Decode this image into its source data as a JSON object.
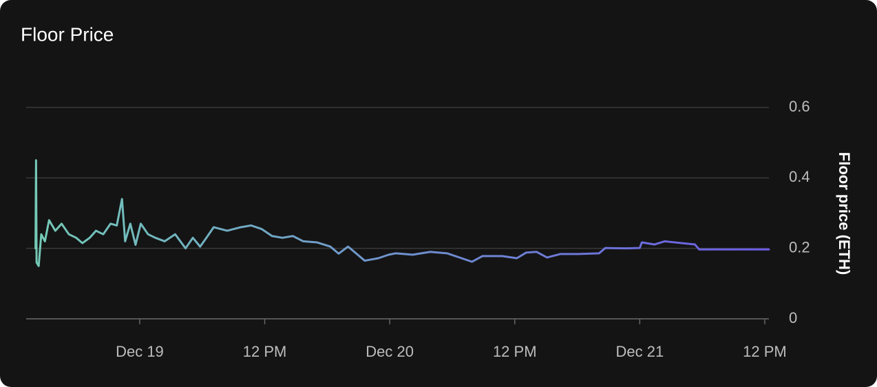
{
  "chart_data": {
    "type": "line",
    "title": "Floor Price",
    "y_label": "Floor price (ETH)",
    "x": [
      -10.0,
      -9.95,
      -9.9,
      -9.7,
      -9.45,
      -9.1,
      -8.7,
      -8.1,
      -7.5,
      -6.8,
      -6.1,
      -5.5,
      -4.8,
      -4.2,
      -3.5,
      -2.8,
      -2.2,
      -1.7,
      -1.4,
      -0.9,
      -0.4,
      0.1,
      0.8,
      1.5,
      2.4,
      3.4,
      4.4,
      5.1,
      5.8,
      6.4,
      7.1,
      8.4,
      9.7,
      10.7,
      11.7,
      12.7,
      13.7,
      14.7,
      15.7,
      17.0,
      18.3,
      19.1,
      20.0,
      20.6,
      21.6,
      22.9,
      23.9,
      24.6,
      26.2,
      27.9,
      29.5,
      30.9,
      31.9,
      32.9,
      34.8,
      36.2,
      37.1,
      38.1,
      39.1,
      40.4,
      42.1,
      44.1,
      44.7,
      46.7,
      48.0,
      48.2,
      49.4,
      50.4,
      52.0,
      53.3,
      53.7,
      56.0,
      58.0,
      60.4
    ],
    "series": [
      {
        "name": "Floor price (ETH)",
        "gradient": [
          "#74cbb6",
          "#6a5ae4"
        ],
        "values": [
          0.2,
          0.45,
          0.16,
          0.15,
          0.24,
          0.22,
          0.28,
          0.25,
          0.27,
          0.24,
          0.23,
          0.215,
          0.23,
          0.25,
          0.24,
          0.27,
          0.265,
          0.34,
          0.22,
          0.27,
          0.21,
          0.27,
          0.24,
          0.23,
          0.22,
          0.24,
          0.2,
          0.23,
          0.205,
          0.23,
          0.26,
          0.25,
          0.26,
          0.265,
          0.255,
          0.235,
          0.23,
          0.235,
          0.22,
          0.217,
          0.205,
          0.185,
          0.205,
          0.19,
          0.165,
          0.172,
          0.182,
          0.186,
          0.182,
          0.19,
          0.186,
          0.172,
          0.162,
          0.178,
          0.178,
          0.172,
          0.188,
          0.19,
          0.174,
          0.184,
          0.184,
          0.186,
          0.201,
          0.2,
          0.201,
          0.217,
          0.211,
          0.22,
          0.215,
          0.211,
          0.197,
          0.197,
          0.197,
          0.197
        ]
      }
    ],
    "xlim": [
      -10.9,
      60.4
    ],
    "xticks": [
      {
        "value": 0,
        "label": "Dec 19"
      },
      {
        "value": 12,
        "label": "12 PM"
      },
      {
        "value": 24,
        "label": "Dec 20"
      },
      {
        "value": 36,
        "label": "12 PM"
      },
      {
        "value": 48,
        "label": "Dec 21"
      },
      {
        "value": 60,
        "label": "12 PM"
      }
    ],
    "ylim": [
      0,
      0.6
    ],
    "yticks": [
      0,
      0.2,
      0.4,
      0.6
    ],
    "y_axis_side": "right",
    "grid": true
  }
}
